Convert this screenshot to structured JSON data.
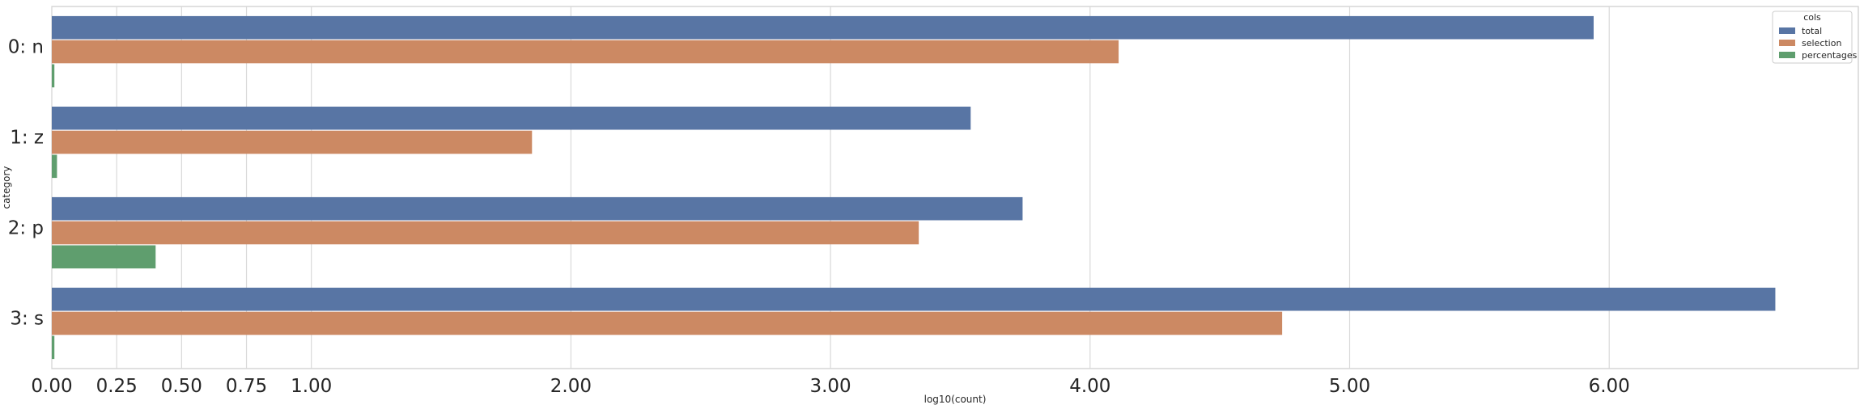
{
  "chart_data": {
    "type": "bar",
    "orientation": "horizontal",
    "categories": [
      "0: n",
      "1: z",
      "2: p",
      "3: s"
    ],
    "series": [
      {
        "name": "total",
        "color": "#5875a4",
        "values": [
          5.94,
          3.54,
          3.74,
          6.64
        ]
      },
      {
        "name": "selection",
        "color": "#cc8963",
        "values": [
          4.11,
          1.85,
          3.34,
          4.74
        ]
      },
      {
        "name": "percentages",
        "color": "#5f9e6e",
        "values": [
          0.01,
          0.02,
          0.4,
          0.01
        ]
      }
    ],
    "xlabel": "log10(count)",
    "ylabel": "category",
    "xticks": [
      0.0,
      0.25,
      0.5,
      0.75,
      1.0,
      2.0,
      3.0,
      4.0,
      5.0,
      6.0
    ],
    "xtick_labels": [
      "0.00",
      "0.25",
      "0.50",
      "0.75",
      "1.00",
      "2.00",
      "3.00",
      "4.00",
      "5.00",
      "6.00"
    ],
    "xlim": [
      0,
      7
    ],
    "grid": "vertical",
    "legend": {
      "title": "cols",
      "placement": "top-right"
    }
  }
}
